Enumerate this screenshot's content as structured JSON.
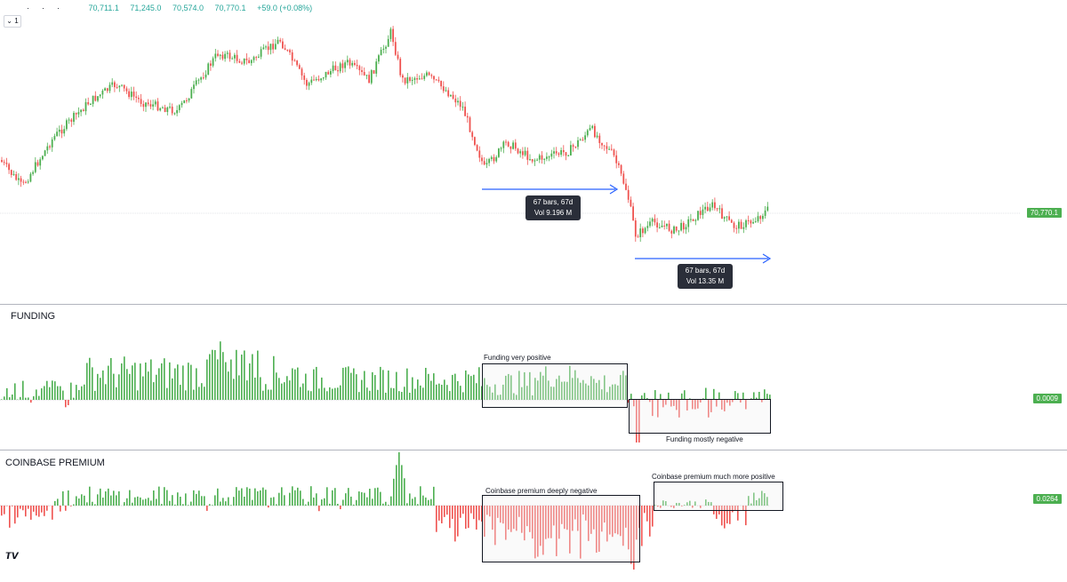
{
  "ohlc": {
    "open": "70,711.1",
    "high": "71,245.0",
    "low": "70,574.0",
    "close": "70,770.1",
    "change": "+59.0 (+0.08%)"
  },
  "interval_label": "1",
  "price_badge": "70,770.1",
  "funding_badge": "0.0009",
  "premium_badge": "0.0264",
  "panels": {
    "funding_title": "FUNDING",
    "premium_title": "COINBASE PREMIUM"
  },
  "measure1": {
    "line1": "67 bars, 67d",
    "line2": "Vol 9.196 M"
  },
  "measure2": {
    "line1": "67 bars, 67d",
    "line2": "Vol 13.35 M"
  },
  "annotations": {
    "funding_positive": "Funding very positive",
    "funding_negative": "Funding mostly negative",
    "premium_negative": "Coinbase premium deeply negative",
    "premium_positive": "Coinbase premium much more positive"
  },
  "colors": {
    "up": "#4caf50",
    "down": "#ef5350",
    "measure": "#2962ff",
    "badge": "#4caf50"
  },
  "icons": {
    "logo": "tradingview-logo-icon",
    "chevron": "chevron-down-icon"
  },
  "chart_data": [
    {
      "type": "candlestick",
      "title": "",
      "last_price": 70770.1,
      "grid": false
    },
    {
      "type": "bar",
      "title": "FUNDING",
      "last_value": 0.0009
    },
    {
      "type": "bar",
      "title": "COINBASE PREMIUM",
      "last_value": 0.0264
    }
  ]
}
